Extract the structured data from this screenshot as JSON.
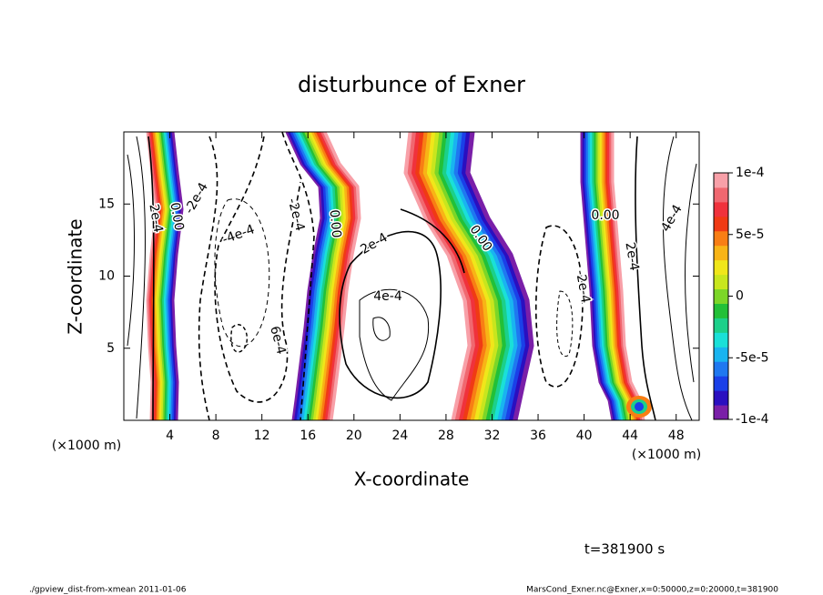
{
  "chart_data": {
    "type": "contour",
    "title": "disturbunce of Exner",
    "xlabel": "X-coordinate",
    "ylabel": "Z-coordinate",
    "xunit": "(×1000 m)",
    "time_label": "t=381900 s",
    "footer_left": "./gpview_dist-from-xmean  2011-01-06",
    "footer_right": "MarsCond_Exner.nc@Exner,x=0:50000,z=0:20000,t=381900",
    "xlim": [
      0,
      50
    ],
    "xticks": [
      4,
      8,
      12,
      16,
      20,
      24,
      28,
      32,
      36,
      40,
      44,
      48
    ],
    "ylim": [
      0,
      20
    ],
    "yticks": [
      5,
      10,
      15
    ],
    "colorbar": {
      "lim": [
        -0.0001,
        0.0001
      ],
      "ticks": [
        {
          "value": 0.0001,
          "label": "1e-4"
        },
        {
          "value": 5e-05,
          "label": "5e-5"
        },
        0,
        {
          "value": -5e-05,
          "label": "-5e-5"
        },
        {
          "value": -0.0001,
          "label": "-1e-4"
        }
      ],
      "colors": [
        "#7a1fa8",
        "#2a0fc0",
        "#1a40e8",
        "#1f78f0",
        "#19b4f0",
        "#1ae0d8",
        "#1cd08a",
        "#22c038",
        "#7cd628",
        "#c8e61e",
        "#f0e61a",
        "#f8b416",
        "#f87e14",
        "#f03a14",
        "#f0323c",
        "#f06870",
        "#f8a0a8"
      ]
    },
    "annotations": [
      "2e-4",
      "0.00",
      "-2e-4",
      "-4e-4",
      "-2e-4",
      "0.00",
      "2e-4",
      "4e-4",
      "6e-4",
      "0.00",
      "-2e-4",
      "0.00",
      "2e-4",
      "4e-4"
    ]
  }
}
